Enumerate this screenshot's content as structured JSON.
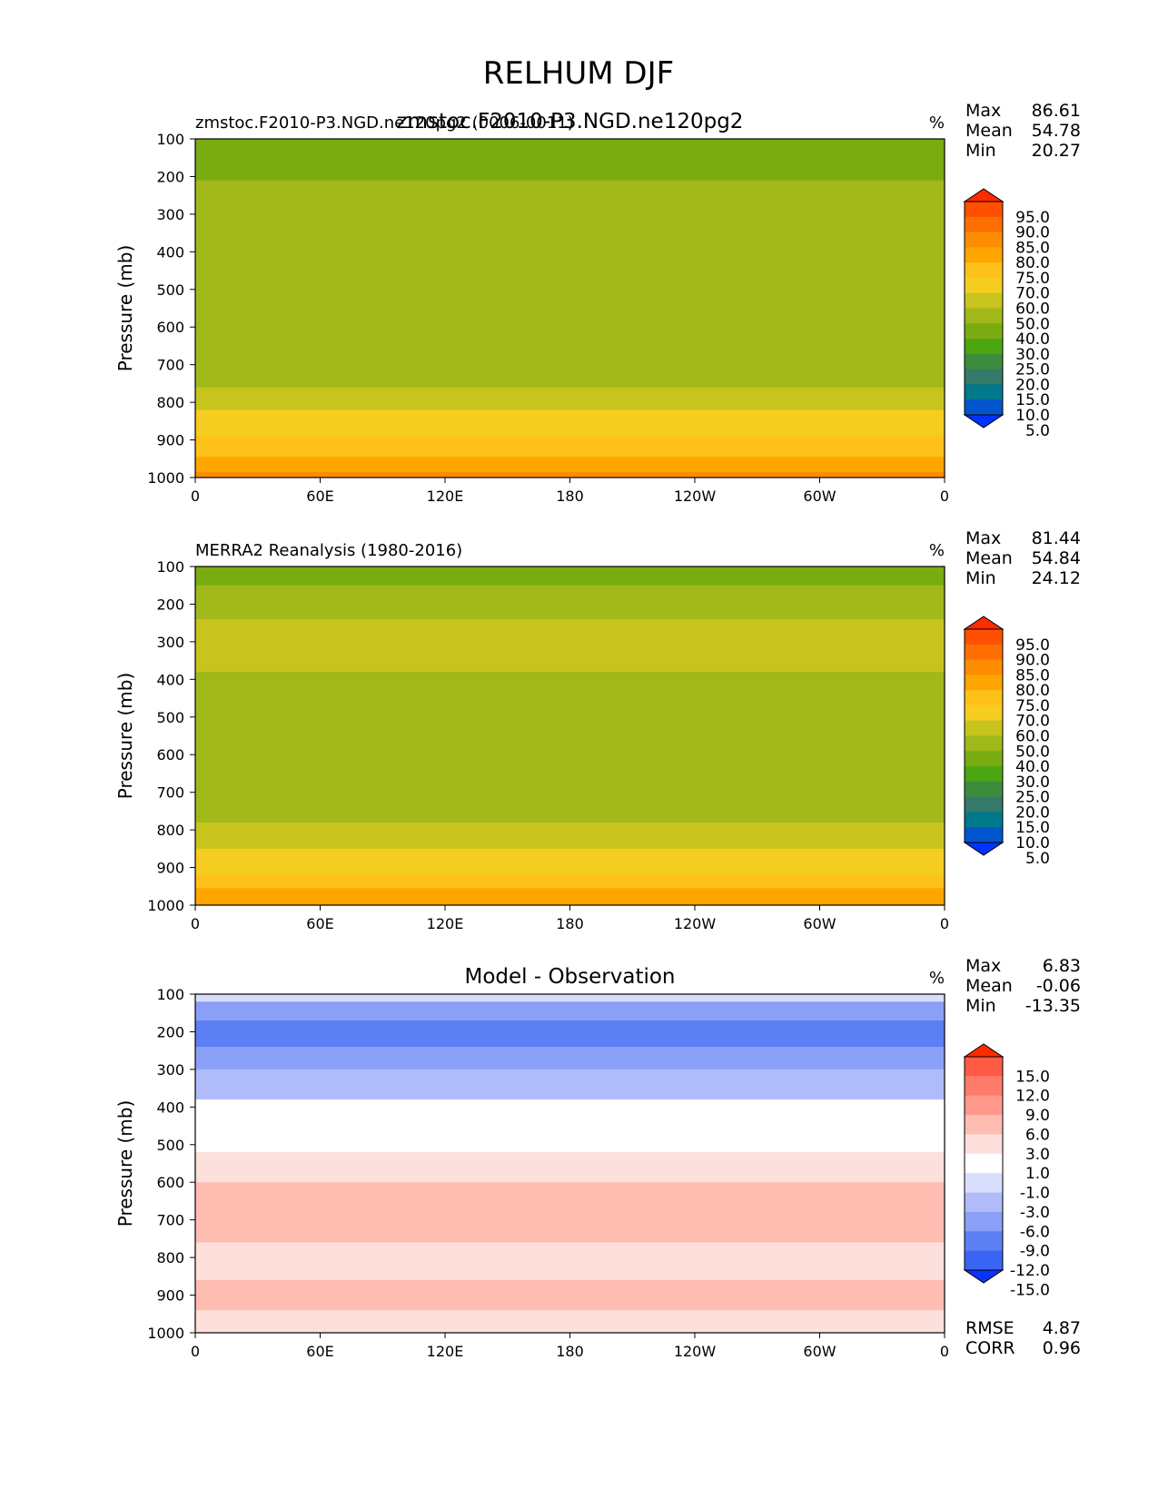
{
  "figure_title": "RELHUM DJF",
  "x_ticks": [
    "0",
    "60E",
    "120E",
    "180",
    "120W",
    "60W",
    "0"
  ],
  "y_ticks": [
    "100",
    "200",
    "300",
    "400",
    "500",
    "600",
    "700",
    "800",
    "900",
    "1000"
  ],
  "y_label": "Pressure (mb)",
  "units": "%",
  "panels": [
    {
      "id": "test",
      "title_left": "zmstoc.F2010-P3.NGD.ne120pg2 (0006-0011)",
      "title_center": "zmstoc.F2010-P3.NGD.ne120pg2",
      "units": "%",
      "stats": [
        {
          "label": "Max",
          "value": "86.61"
        },
        {
          "label": "Mean",
          "value": "54.78"
        },
        {
          "label": "Min",
          "value": "20.27"
        }
      ],
      "colorbar_labels": [
        "95.0",
        "90.0",
        "85.0",
        "80.0",
        "75.0",
        "70.0",
        "60.0",
        "50.0",
        "40.0",
        "30.0",
        "25.0",
        "20.0",
        "15.0",
        "10.0",
        "5.0"
      ],
      "colorbar_colors": [
        "#ff2a00",
        "#fe5000",
        "#fe6e00",
        "#fe8c00",
        "#fea500",
        "#fec11a",
        "#f5cd20",
        "#c6c41d",
        "#a0b81a",
        "#7aac12",
        "#4ca612",
        "#3d8c3d",
        "#34796a",
        "#00798c",
        "#0055cc",
        "#0033ff"
      ],
      "bands": [
        {
          "level": 100,
          "color": "#7aac12"
        },
        {
          "level": 210,
          "color": "#a0b81a"
        },
        {
          "level": 760,
          "color": "#c6c41d"
        },
        {
          "level": 820,
          "color": "#f5cd20"
        },
        {
          "level": 890,
          "color": "#fec11a"
        },
        {
          "level": 945,
          "color": "#fea500"
        },
        {
          "level": 985,
          "color": "#fe8c00"
        }
      ]
    },
    {
      "id": "reference",
      "title_left": "MERRA2 Reanalysis (1980-2016)",
      "title_center": "",
      "units": "%",
      "stats": [
        {
          "label": "Max",
          "value": "81.44"
        },
        {
          "label": "Mean",
          "value": "54.84"
        },
        {
          "label": "Min",
          "value": "24.12"
        }
      ],
      "colorbar_labels": [
        "95.0",
        "90.0",
        "85.0",
        "80.0",
        "75.0",
        "70.0",
        "60.0",
        "50.0",
        "40.0",
        "30.0",
        "25.0",
        "20.0",
        "15.0",
        "10.0",
        "5.0"
      ],
      "colorbar_colors": [
        "#ff2a00",
        "#fe5000",
        "#fe6e00",
        "#fe8c00",
        "#fea500",
        "#fec11a",
        "#f5cd20",
        "#c6c41d",
        "#a0b81a",
        "#7aac12",
        "#4ca612",
        "#3d8c3d",
        "#34796a",
        "#00798c",
        "#0055cc",
        "#0033ff"
      ],
      "bands": [
        {
          "level": 100,
          "color": "#7aac12"
        },
        {
          "level": 150,
          "color": "#a0b81a"
        },
        {
          "level": 240,
          "color": "#c6c41d"
        },
        {
          "level": 380,
          "color": "#a0b81a"
        },
        {
          "level": 780,
          "color": "#c6c41d"
        },
        {
          "level": 850,
          "color": "#f5cd20"
        },
        {
          "level": 920,
          "color": "#fec11a"
        },
        {
          "level": 955,
          "color": "#fea500"
        }
      ]
    },
    {
      "id": "diff",
      "title_left": "",
      "title_center": "Model - Observation",
      "units": "%",
      "stats": [
        {
          "label": "Max",
          "value": "6.83"
        },
        {
          "label": "Mean",
          "value": "-0.06"
        },
        {
          "label": "Min",
          "value": "-13.35"
        }
      ],
      "colorbar_labels": [
        "15.0",
        "12.0",
        "9.0",
        "6.0",
        "3.0",
        "1.0",
        "-1.0",
        "-3.0",
        "-6.0",
        "-9.0",
        "-12.0",
        "-15.0"
      ],
      "colorbar_colors": [
        "#ff2a00",
        "#ff5a44",
        "#ff7a6a",
        "#ff9a8c",
        "#ffbdb2",
        "#fde0dc",
        "#ffffff",
        "#d8ddfc",
        "#b0bcf9",
        "#8aa0f7",
        "#5c7ff4",
        "#3a64f2",
        "#0a33ff"
      ],
      "bands": [
        {
          "level": 100,
          "color": "#d8ddfc"
        },
        {
          "level": 120,
          "color": "#8aa0f7"
        },
        {
          "level": 170,
          "color": "#5c7ff4"
        },
        {
          "level": 240,
          "color": "#8aa0f7"
        },
        {
          "level": 300,
          "color": "#b0bcf9"
        },
        {
          "level": 380,
          "color": "#ffffff"
        },
        {
          "level": 520,
          "color": "#fde0dc"
        },
        {
          "level": 600,
          "color": "#ffbdb2"
        },
        {
          "level": 760,
          "color": "#fde0dc"
        },
        {
          "level": 860,
          "color": "#ffbdb2"
        },
        {
          "level": 940,
          "color": "#fde0dc"
        }
      ],
      "footer_stats": [
        {
          "label": "RMSE",
          "value": "4.87"
        },
        {
          "label": "CORR",
          "value": "0.96"
        }
      ]
    }
  ],
  "chart_data": {
    "type": "heatmap",
    "title": "RELHUM DJF",
    "xlabel": "",
    "ylabel": "Pressure (mb)",
    "x_categories": [
      "0",
      "60E",
      "120E",
      "180",
      "120W",
      "60W",
      "0"
    ],
    "xlim": [
      0,
      360
    ],
    "ylim": [
      1000,
      100
    ],
    "y_ticks": [
      100,
      200,
      300,
      400,
      500,
      600,
      700,
      800,
      900,
      1000
    ],
    "units": "%",
    "panels": [
      {
        "name": "zmstoc.F2010-P3.NGD.ne120pg2",
        "max": 86.61,
        "mean": 54.78,
        "min": 20.27,
        "levels": [
          5,
          10,
          15,
          20,
          25,
          30,
          40,
          50,
          60,
          70,
          75,
          80,
          85,
          90,
          95
        ]
      },
      {
        "name": "MERRA2 Reanalysis (1980-2016)",
        "max": 81.44,
        "mean": 54.84,
        "min": 24.12,
        "levels": [
          5,
          10,
          15,
          20,
          25,
          30,
          40,
          50,
          60,
          70,
          75,
          80,
          85,
          90,
          95
        ]
      },
      {
        "name": "Model - Observation",
        "max": 6.83,
        "mean": -0.06,
        "min": -13.35,
        "rmse": 4.87,
        "corr": 0.96,
        "levels": [
          -15,
          -12,
          -9,
          -6,
          -3,
          -1,
          1,
          3,
          6,
          9,
          12,
          15
        ]
      }
    ]
  }
}
